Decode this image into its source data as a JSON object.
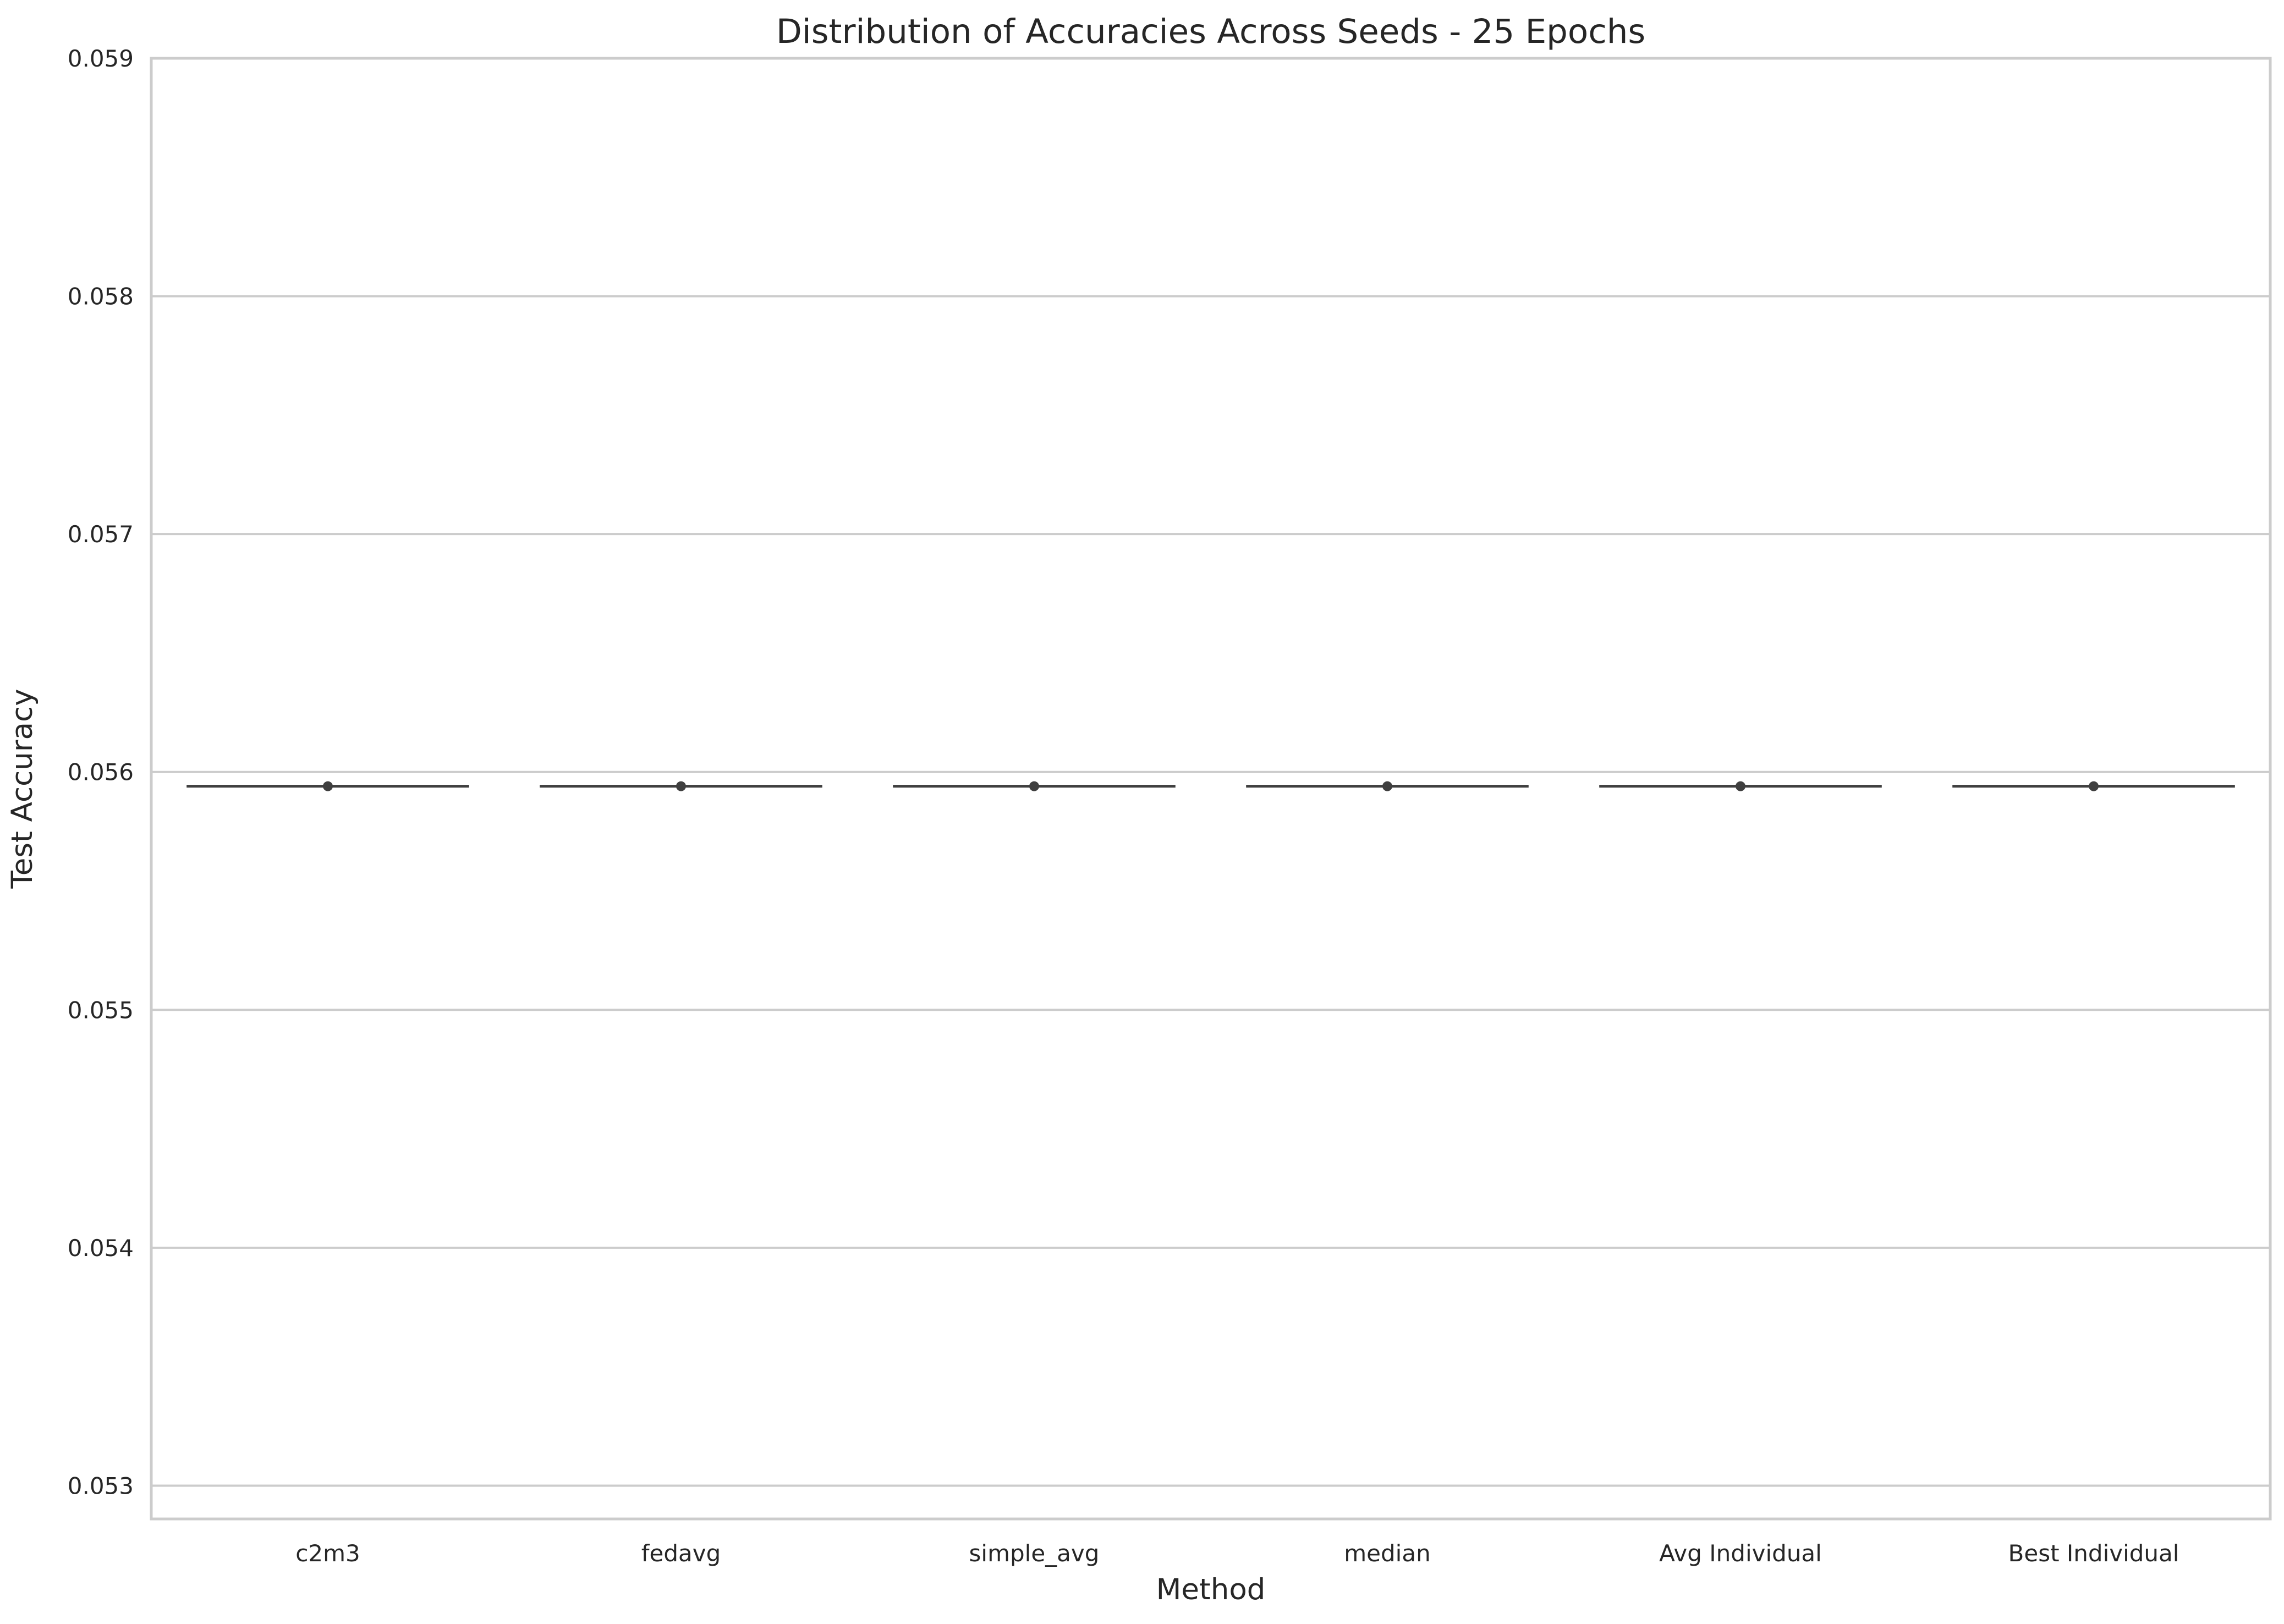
{
  "chart_data": {
    "type": "violin",
    "title": "Distribution of Accuracies Across Seeds - 25 Epochs",
    "xlabel": "Method",
    "ylabel": "Test Accuracy",
    "categories": [
      "c2m3",
      "fedavg",
      "simple_avg",
      "median",
      "Avg Individual",
      "Best Individual"
    ],
    "values": [
      0.05594,
      0.05594,
      0.05594,
      0.05594,
      0.05594,
      0.05594
    ],
    "yticks": [
      0.053,
      0.054,
      0.055,
      0.056,
      0.057,
      0.058,
      0.059
    ],
    "ytick_labels": [
      "0.053",
      "0.054",
      "0.055",
      "0.056",
      "0.057",
      "0.058",
      "0.059"
    ],
    "ylim": [
      0.05286,
      0.059
    ],
    "grid": true,
    "colors": {
      "mark": "#3f3f3f",
      "grid": "#cccccc",
      "text": "#262626"
    }
  }
}
